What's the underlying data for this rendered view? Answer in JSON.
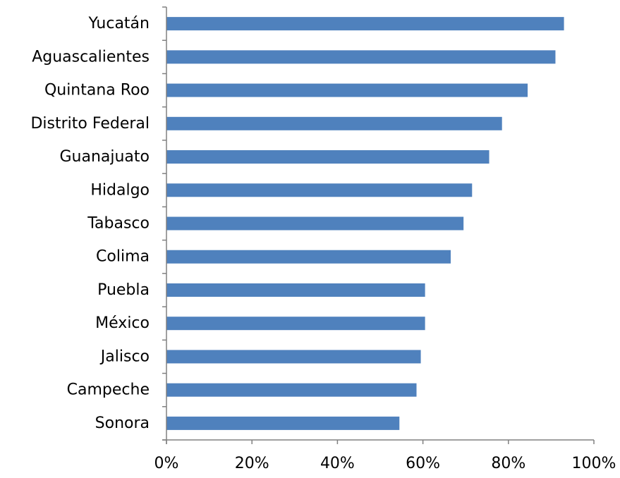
{
  "chart_data": {
    "type": "bar",
    "orientation": "horizontal",
    "categories": [
      "Yucatán",
      "Aguascalientes",
      "Quintana Roo",
      "Distrito Federal",
      "Guanajuato",
      "Hidalgo",
      "Tabasco",
      "Colima",
      "Puebla",
      "México",
      "Jalisco",
      "Campeche",
      "Sonora"
    ],
    "values": [
      93,
      91,
      84.5,
      78.5,
      75.5,
      71.5,
      69.5,
      66.5,
      60.5,
      60.5,
      59.5,
      58.5,
      54.5
    ],
    "value_unit": "%",
    "xlim": [
      0,
      100
    ],
    "x_ticks": [
      0,
      20,
      40,
      60,
      80,
      100
    ],
    "x_tick_labels": [
      "0%",
      "20%",
      "40%",
      "60%",
      "80%",
      "100%"
    ],
    "title": "",
    "xlabel": "",
    "ylabel": "",
    "grid": false,
    "legend": "none",
    "bar_color": "#4F81BD",
    "axis_color": "#808080"
  }
}
